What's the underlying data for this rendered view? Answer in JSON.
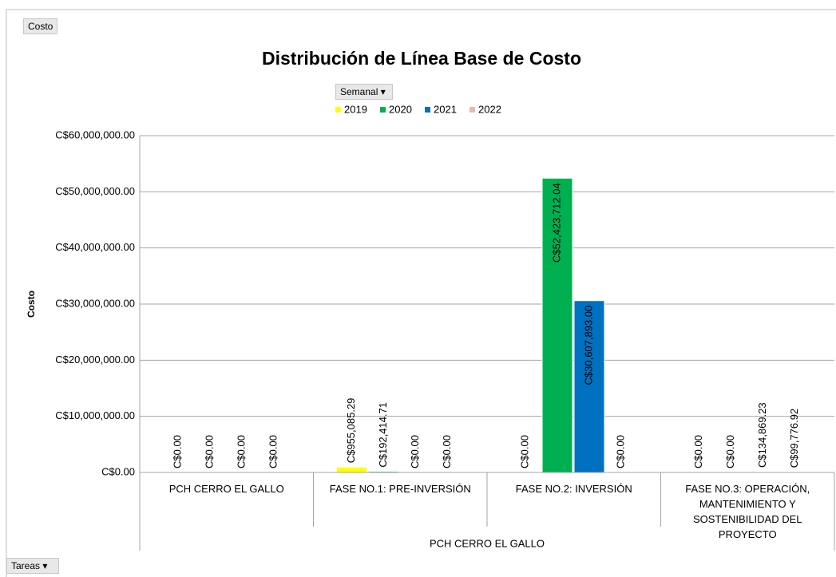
{
  "controls": {
    "top_left": "Costo",
    "filter": "Semanal",
    "bottom": "Tareas"
  },
  "chart_data": {
    "type": "bar",
    "title": "Distribución de Línea Base de Costo",
    "y_label": "Costo",
    "categories": [
      "PCH CERRO EL GALLO",
      "FASE NO.1: PRE-INVERSIÓN",
      "FASE NO.2: INVERSIÓN",
      "FASE NO.3: OPERACIÓN, MANTENIMIENTO Y SOSTENIBILIDAD DEL PROYECTO"
    ],
    "outer_category": "PCH CERRO EL GALLO",
    "series": [
      {
        "name": "2019",
        "color": "#ffff00",
        "values": [
          0,
          955085.29,
          0,
          0
        ],
        "value_labels": [
          "C$0.00",
          "C$955,085.29",
          "C$0.00",
          "C$0.00"
        ]
      },
      {
        "name": "2020",
        "color": "#00b050",
        "values": [
          0,
          192414.71,
          52423712.04,
          0
        ],
        "value_labels": [
          "C$0.00",
          "C$192,414.71",
          "C$52,423,712.04",
          "C$0.00"
        ]
      },
      {
        "name": "2021",
        "color": "#0070c0",
        "values": [
          0,
          0,
          30607893.0,
          134869.23
        ],
        "value_labels": [
          "C$0.00",
          "C$0.00",
          "C$30,607,893.00",
          "C$134,869.23"
        ]
      },
      {
        "name": "2022",
        "color": "#e6b9b8",
        "values": [
          0,
          0,
          0,
          99776.92
        ],
        "value_labels": [
          "C$0.00",
          "C$0.00",
          "C$0.00",
          "C$99,776.92"
        ]
      }
    ],
    "ylim": [
      0,
      60000000
    ],
    "yticks": [
      {
        "value": 0,
        "label": "C$0.00"
      },
      {
        "value": 10000000,
        "label": "C$10,000,000.00"
      },
      {
        "value": 20000000,
        "label": "C$20,000,000.00"
      },
      {
        "value": 30000000,
        "label": "C$30,000,000.00"
      },
      {
        "value": 40000000,
        "label": "C$40,000,000.00"
      },
      {
        "value": 50000000,
        "label": "C$50,000,000.00"
      },
      {
        "value": 60000000,
        "label": "C$60,000,000.00"
      }
    ],
    "grid": true,
    "legend": "top"
  }
}
